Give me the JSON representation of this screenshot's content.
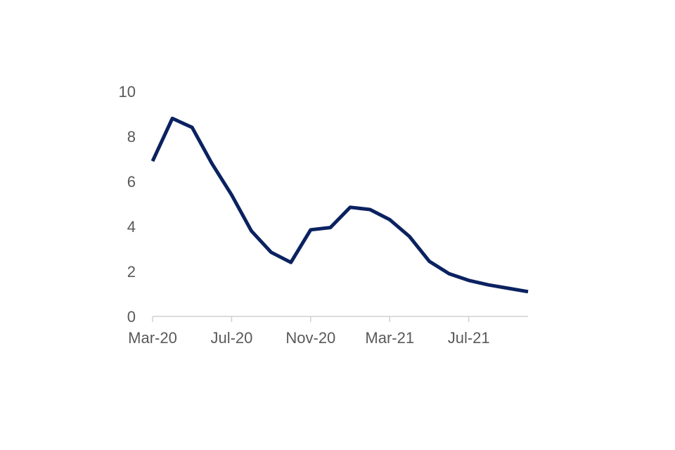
{
  "chart_data": {
    "type": "line",
    "title": "",
    "xlabel": "",
    "ylabel": "",
    "x": [
      "Mar-20",
      "Apr-20",
      "May-20",
      "Jun-20",
      "Jul-20",
      "Aug-20",
      "Sep-20",
      "Oct-20",
      "Nov-20",
      "Dec-20",
      "Jan-21",
      "Feb-21",
      "Mar-21",
      "Apr-21",
      "May-21",
      "Jun-21",
      "Jul-21",
      "Aug-21",
      "Sep-21",
      "Oct-21"
    ],
    "series": [
      {
        "values": [
          6.9,
          8.8,
          8.4,
          6.8,
          5.4,
          3.8,
          2.85,
          2.4,
          3.85,
          3.95,
          4.85,
          4.75,
          4.3,
          3.55,
          2.45,
          1.9,
          1.6,
          1.4,
          1.25,
          1.1
        ]
      }
    ],
    "xticks": [
      "Mar-20",
      "Jul-20",
      "Nov-20",
      "Mar-21",
      "Jul-21"
    ],
    "yticks": [
      "0",
      "2",
      "4",
      "6",
      "8",
      "10"
    ],
    "ylim": [
      0,
      10
    ],
    "grid": false,
    "legend": "none",
    "line_color": "#0b2260",
    "axis_color": "#d0d0d0",
    "label_color": "#595959"
  }
}
